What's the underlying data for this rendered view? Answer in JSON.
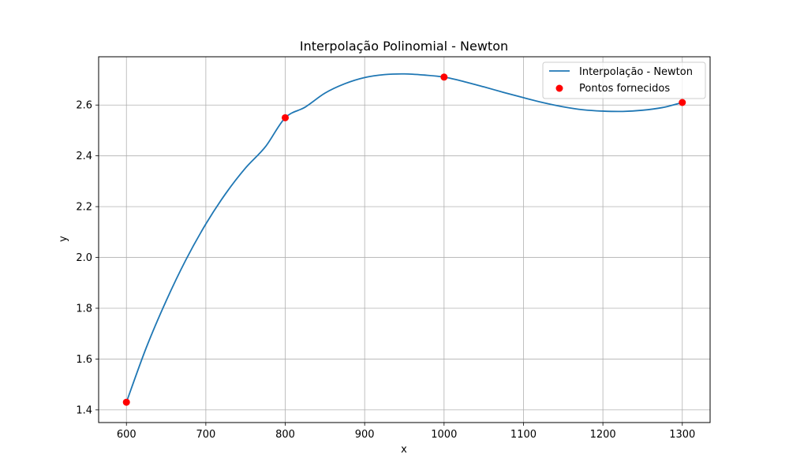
{
  "chart_data": {
    "type": "line",
    "title": "Interpolação Polinomial - Newton",
    "xlabel": "x",
    "ylabel": "y",
    "xlim": [
      565,
      1335
    ],
    "ylim": [
      1.35,
      2.79
    ],
    "xticks": [
      600,
      700,
      800,
      900,
      1000,
      1100,
      1200,
      1300
    ],
    "yticks": [
      1.4,
      1.6,
      1.8,
      2.0,
      2.2,
      2.4,
      2.6
    ],
    "xtick_labels": [
      "600",
      "700",
      "800",
      "900",
      "1000",
      "1100",
      "1200",
      "1300"
    ],
    "ytick_labels": [
      "1.4",
      "1.6",
      "1.8",
      "2.0",
      "2.2",
      "2.4",
      "2.6"
    ],
    "grid": true,
    "legend_position": "top-right",
    "series": [
      {
        "name": "Interpolação - Newton",
        "kind": "line",
        "color": "#1f77b4",
        "points": [
          [
            600,
            1.43
          ],
          [
            625,
            1.6448
          ],
          [
            650,
            1.8288
          ],
          [
            675,
            1.9913
          ],
          [
            700,
            2.1316
          ],
          [
            725,
            2.2513
          ],
          [
            750,
            2.3521
          ],
          [
            775,
            2.4355
          ],
          [
            800,
            2.55
          ],
          [
            825,
            2.5916
          ],
          [
            850,
            2.6468
          ],
          [
            875,
            2.6838
          ],
          [
            900,
            2.7081
          ],
          [
            925,
            2.7197
          ],
          [
            950,
            2.7225
          ],
          [
            975,
            2.718
          ],
          [
            1000,
            2.71
          ],
          [
            1025,
            2.6924
          ],
          [
            1050,
            2.6716
          ],
          [
            1075,
            2.6497
          ],
          [
            1100,
            2.6289
          ],
          [
            1125,
            2.6092
          ],
          [
            1150,
            2.593
          ],
          [
            1175,
            2.5813
          ],
          [
            1200,
            2.576
          ],
          [
            1225,
            2.5748
          ],
          [
            1250,
            2.5795
          ],
          [
            1275,
            2.59
          ],
          [
            1300,
            2.61
          ]
        ]
      },
      {
        "name": "Pontos fornecidos",
        "kind": "scatter",
        "color": "#ff0000",
        "x": [
          600,
          800,
          1000,
          1300
        ],
        "y": [
          1.43,
          2.55,
          2.71,
          2.61
        ]
      }
    ]
  }
}
